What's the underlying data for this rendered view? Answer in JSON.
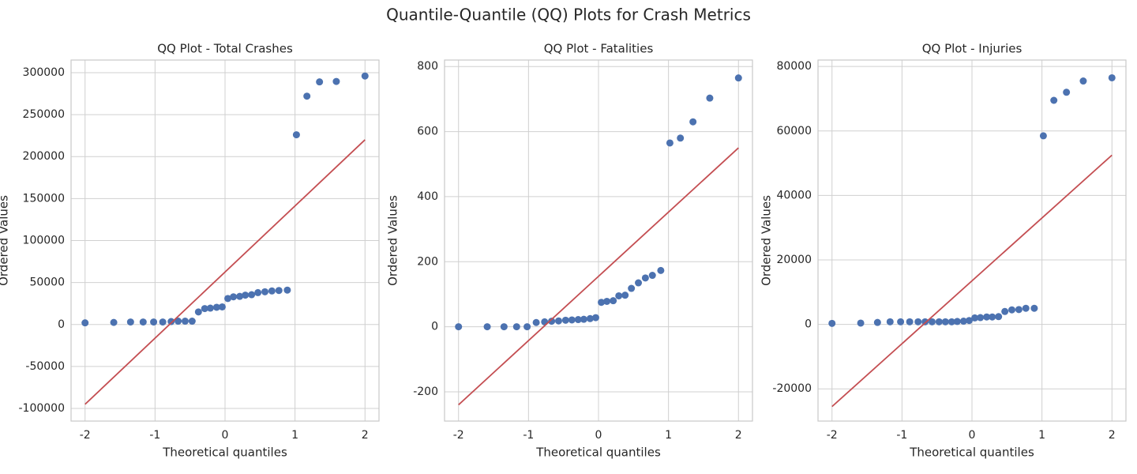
{
  "title": "Quantile-Quantile (QQ) Plots for Crash Metrics",
  "chart_data": [
    {
      "type": "scatter",
      "title": "QQ Plot - Total Crashes",
      "xlabel": "Theoretical quantiles",
      "ylabel": "Ordered Values",
      "x": [
        -2.0,
        -1.59,
        -1.35,
        -1.17,
        -1.02,
        -0.89,
        -0.77,
        -0.67,
        -0.57,
        -0.47,
        -0.38,
        -0.29,
        -0.21,
        -0.12,
        -0.04,
        0.04,
        0.12,
        0.21,
        0.29,
        0.38,
        0.47,
        0.57,
        0.67,
        0.77,
        0.89,
        1.02,
        1.17,
        1.35,
        1.59,
        2.0
      ],
      "values": [
        2000,
        2500,
        3000,
        3000,
        3000,
        3000,
        3500,
        4000,
        4000,
        4000,
        15000,
        19000,
        19500,
        20500,
        21000,
        31000,
        33000,
        33500,
        35000,
        35500,
        38000,
        39000,
        40000,
        40500,
        41000,
        226000,
        272000,
        289000,
        289500,
        296000
      ],
      "color": "#4c72b0",
      "fit_line": {
        "x": [
          -2,
          2
        ],
        "y": [
          -95000,
          220000
        ],
        "color": "#c44e52"
      },
      "xlim": [
        -2.2,
        2.2
      ],
      "xticks": [
        -2,
        -1,
        0,
        1,
        2
      ],
      "ylim": [
        -115000,
        315000
      ],
      "yticks": [
        -100000,
        -50000,
        0,
        50000,
        100000,
        150000,
        200000,
        250000,
        300000
      ],
      "grid": true
    },
    {
      "type": "scatter",
      "title": "QQ Plot - Fatalities",
      "xlabel": "Theoretical quantiles",
      "ylabel": "Ordered Values",
      "x": [
        -2.0,
        -1.59,
        -1.35,
        -1.17,
        -1.02,
        -0.89,
        -0.77,
        -0.67,
        -0.57,
        -0.47,
        -0.38,
        -0.29,
        -0.21,
        -0.12,
        -0.04,
        0.04,
        0.12,
        0.21,
        0.29,
        0.38,
        0.47,
        0.57,
        0.67,
        0.77,
        0.89,
        1.02,
        1.17,
        1.35,
        1.59,
        2.0
      ],
      "values": [
        0,
        0,
        0,
        0,
        0,
        13,
        15,
        17,
        18,
        20,
        21,
        22,
        23,
        25,
        28,
        75,
        78,
        80,
        95,
        97,
        118,
        135,
        150,
        158,
        173,
        565,
        580,
        630,
        703,
        765
      ],
      "color": "#4c72b0",
      "fit_line": {
        "x": [
          -2,
          2
        ],
        "y": [
          -240,
          550
        ],
        "color": "#c44e52"
      },
      "xlim": [
        -2.2,
        2.2
      ],
      "xticks": [
        -2,
        -1,
        0,
        1,
        2
      ],
      "ylim": [
        -290,
        820
      ],
      "yticks": [
        -200,
        0,
        200,
        400,
        600,
        800
      ],
      "grid": true
    },
    {
      "type": "scatter",
      "title": "QQ Plot - Injuries",
      "xlabel": "Theoretical quantiles",
      "ylabel": "Ordered Values",
      "x": [
        -2.0,
        -1.59,
        -1.35,
        -1.17,
        -1.02,
        -0.89,
        -0.77,
        -0.67,
        -0.57,
        -0.47,
        -0.38,
        -0.29,
        -0.21,
        -0.12,
        -0.04,
        0.04,
        0.12,
        0.21,
        0.29,
        0.38,
        0.47,
        0.57,
        0.67,
        0.77,
        0.89,
        1.02,
        1.17,
        1.35,
        1.59,
        2.0
      ],
      "values": [
        300,
        400,
        600,
        800,
        800,
        800,
        800,
        800,
        800,
        800,
        800,
        800,
        900,
        1000,
        1200,
        2000,
        2100,
        2300,
        2300,
        2400,
        4000,
        4500,
        4600,
        5000,
        5000,
        58500,
        69500,
        72000,
        75500,
        76500
      ],
      "color": "#4c72b0",
      "fit_line": {
        "x": [
          -2,
          2
        ],
        "y": [
          -25500,
          52500
        ],
        "color": "#c44e52"
      },
      "xlim": [
        -2.2,
        2.2
      ],
      "xticks": [
        -2,
        -1,
        0,
        1,
        2
      ],
      "ylim": [
        -30000,
        82000
      ],
      "yticks": [
        -20000,
        0,
        20000,
        40000,
        60000,
        80000
      ],
      "grid": true
    }
  ]
}
